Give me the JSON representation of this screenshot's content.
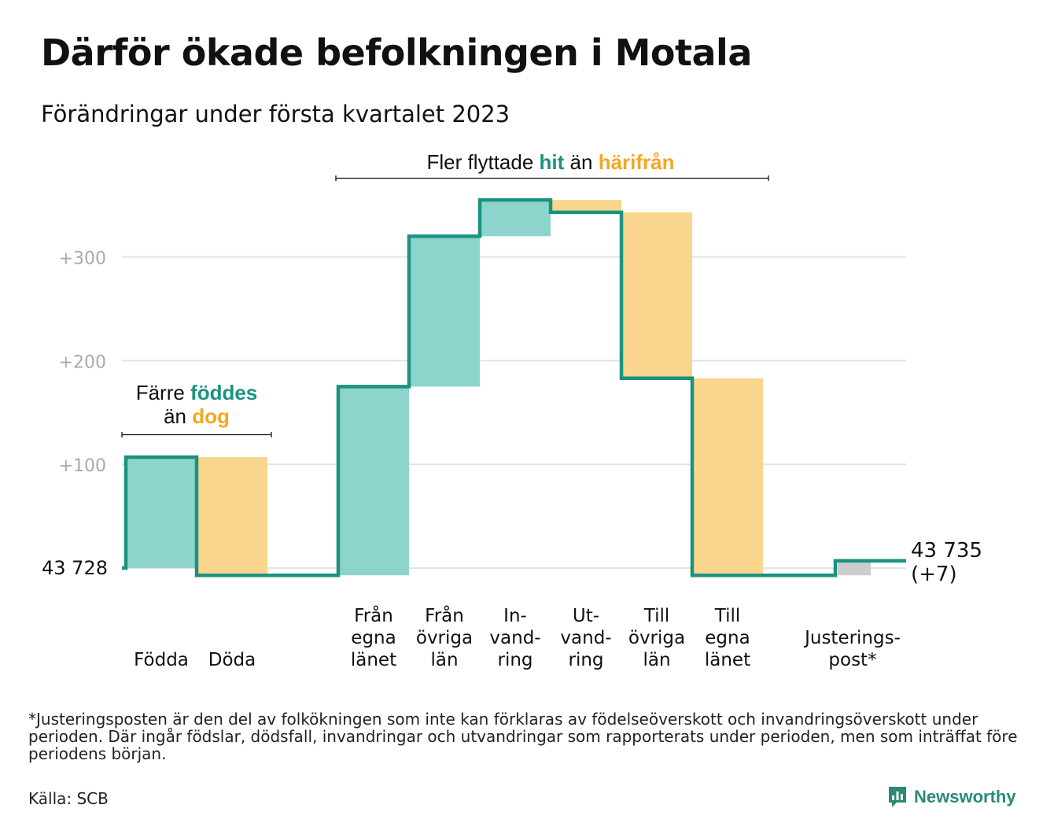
{
  "title": "Därför ökade befolkningen i Motala",
  "subtitle": "Förändringar under första kvartalet 2023",
  "chart_data": {
    "type": "waterfall",
    "baseline_value": 43728,
    "baseline_label": "43 728",
    "end_label_value": "43 735",
    "end_label_change": "(+7)",
    "y_ticks": [
      {
        "value": 100,
        "label": "+100"
      },
      {
        "value": 200,
        "label": "+200"
      },
      {
        "value": 300,
        "label": "+300"
      }
    ],
    "steps": [
      {
        "label_lines": [
          "Födda"
        ],
        "change": 107,
        "kind": "inflow"
      },
      {
        "label_lines": [
          "Döda"
        ],
        "change": -114,
        "kind": "outflow"
      },
      {
        "label_lines": [
          "Från",
          "egna",
          "länet"
        ],
        "change": 182,
        "kind": "inflow"
      },
      {
        "label_lines": [
          "Från",
          "övriga",
          "län"
        ],
        "change": 145,
        "kind": "inflow"
      },
      {
        "label_lines": [
          "In-",
          "vand-",
          "ring"
        ],
        "change": 35,
        "kind": "inflow"
      },
      {
        "label_lines": [
          "Ut-",
          "vand-",
          "ring"
        ],
        "change": -12,
        "kind": "outflow"
      },
      {
        "label_lines": [
          "Till",
          "övriga",
          "län"
        ],
        "change": -160,
        "kind": "outflow"
      },
      {
        "label_lines": [
          "Till",
          "egna",
          "länet"
        ],
        "change": -190,
        "kind": "outflow"
      },
      {
        "label_lines": [
          "Justerings-",
          "post*"
        ],
        "change": 14,
        "kind": "adjustment"
      }
    ],
    "annotations": [
      {
        "id": "births",
        "line1": [
          "Färre ",
          "föddes"
        ],
        "line2": [
          "än ",
          "dog"
        ]
      },
      {
        "id": "moves",
        "line1": [
          "Fler flyttade ",
          "hit",
          " än ",
          "härifrån"
        ]
      }
    ],
    "colors": {
      "inflow": "#8dd5cc",
      "outflow": "#fad58e",
      "adjustment": "#cccccc",
      "line": "#1b9380",
      "accent_hit": "#1b9380",
      "accent_harifran": "#f5a623",
      "grid": "#e3e3e3",
      "tick_text": "#aaaaaa"
    },
    "grid": true
  },
  "footnote": "*Justeringsposten är den del av folkökningen som inte kan förklaras av födelseöverskott och invandringsöverskott under perioden. Där ingår födslar, dödsfall, invandringar och utvandringar som rapporterats under perioden, men som inträffat före periodens början.",
  "source": "Källa: SCB",
  "brand": {
    "name": "Newsworthy",
    "icon": "bar-chart-icon"
  }
}
